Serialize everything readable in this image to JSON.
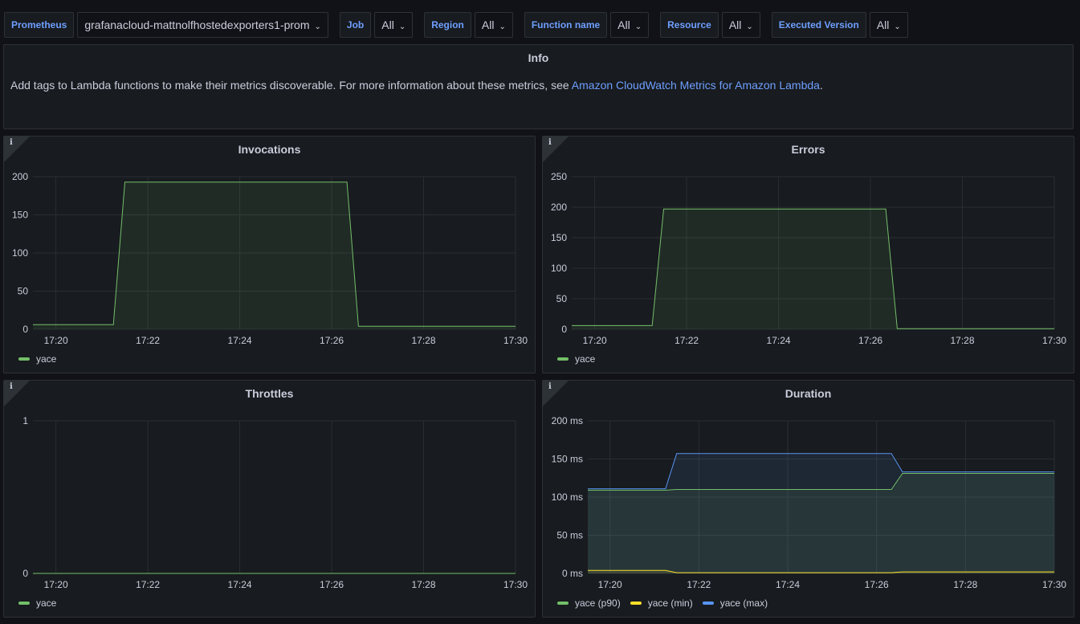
{
  "variables": [
    {
      "label": "Prometheus",
      "value": "grafanacloud-mattnolfhostedexporters1-prom"
    },
    {
      "label": "Job",
      "value": "All"
    },
    {
      "label": "Region",
      "value": "All"
    },
    {
      "label": "Function name",
      "value": "All"
    },
    {
      "label": "Resource",
      "value": "All"
    },
    {
      "label": "Executed Version",
      "value": "All"
    }
  ],
  "info": {
    "title": "Info",
    "text": "Add tags to Lambda functions to make their metrics discoverable. For more information about these metrics, see ",
    "link": "Amazon CloudWatch Metrics for Amazon Lambda",
    "suffix": "."
  },
  "colors": {
    "green": "#73bf69",
    "yellow": "#fade2a",
    "blue": "#5794f2",
    "link": "#6e9fff"
  },
  "chart_data": [
    {
      "type": "area",
      "title": "Invocations",
      "x_ticks": [
        "17:20",
        "17:22",
        "17:24",
        "17:26",
        "17:28",
        "17:30"
      ],
      "y_ticks": [
        "0",
        "50",
        "100",
        "150",
        "200"
      ],
      "ylim": [
        0,
        200
      ],
      "series": [
        {
          "name": "yace",
          "color": "#73bf69",
          "x": [
            "17:19:30",
            "17:21:15",
            "17:21:30",
            "17:26:20",
            "17:26:35",
            "17:30"
          ],
          "values": [
            6,
            6,
            193,
            193,
            4,
            4
          ]
        }
      ]
    },
    {
      "type": "area",
      "title": "Errors",
      "x_ticks": [
        "17:20",
        "17:22",
        "17:24",
        "17:26",
        "17:28",
        "17:30"
      ],
      "y_ticks": [
        "0",
        "50",
        "100",
        "150",
        "200",
        "250"
      ],
      "ylim": [
        0,
        250
      ],
      "series": [
        {
          "name": "yace",
          "color": "#73bf69",
          "x": [
            "17:19:30",
            "17:21:15",
            "17:21:30",
            "17:26:20",
            "17:26:35",
            "17:30"
          ],
          "values": [
            6,
            6,
            197,
            197,
            1,
            1
          ]
        }
      ]
    },
    {
      "type": "line",
      "title": "Throttles",
      "x_ticks": [
        "17:20",
        "17:22",
        "17:24",
        "17:26",
        "17:28",
        "17:30"
      ],
      "y_ticks": [
        "0",
        "1"
      ],
      "ylim": [
        0,
        1
      ],
      "series": [
        {
          "name": "yace",
          "color": "#73bf69",
          "x": [
            "17:19:30",
            "17:30"
          ],
          "values": [
            0,
            0
          ]
        }
      ]
    },
    {
      "type": "area",
      "title": "Duration",
      "x_ticks": [
        "17:20",
        "17:22",
        "17:24",
        "17:26",
        "17:28",
        "17:30"
      ],
      "y_ticks": [
        "0 ms",
        "50 ms",
        "100 ms",
        "150 ms",
        "200 ms"
      ],
      "ylim": [
        0,
        200
      ],
      "series": [
        {
          "name": "yace (p90)",
          "color": "#73bf69",
          "x": [
            "17:19:30",
            "17:21:15",
            "17:21:30",
            "17:26:20",
            "17:26:35",
            "17:30"
          ],
          "values": [
            109,
            109,
            110,
            110,
            131,
            131
          ]
        },
        {
          "name": "yace (min)",
          "color": "#fade2a",
          "x": [
            "17:19:30",
            "17:21:15",
            "17:21:30",
            "17:26:20",
            "17:26:35",
            "17:30"
          ],
          "values": [
            4,
            4,
            1,
            1,
            2,
            2
          ]
        },
        {
          "name": "yace (max)",
          "color": "#5794f2",
          "x": [
            "17:19:30",
            "17:21:15",
            "17:21:30",
            "17:26:20",
            "17:26:35",
            "17:30"
          ],
          "values": [
            111,
            111,
            157,
            157,
            133,
            133
          ]
        }
      ]
    }
  ]
}
